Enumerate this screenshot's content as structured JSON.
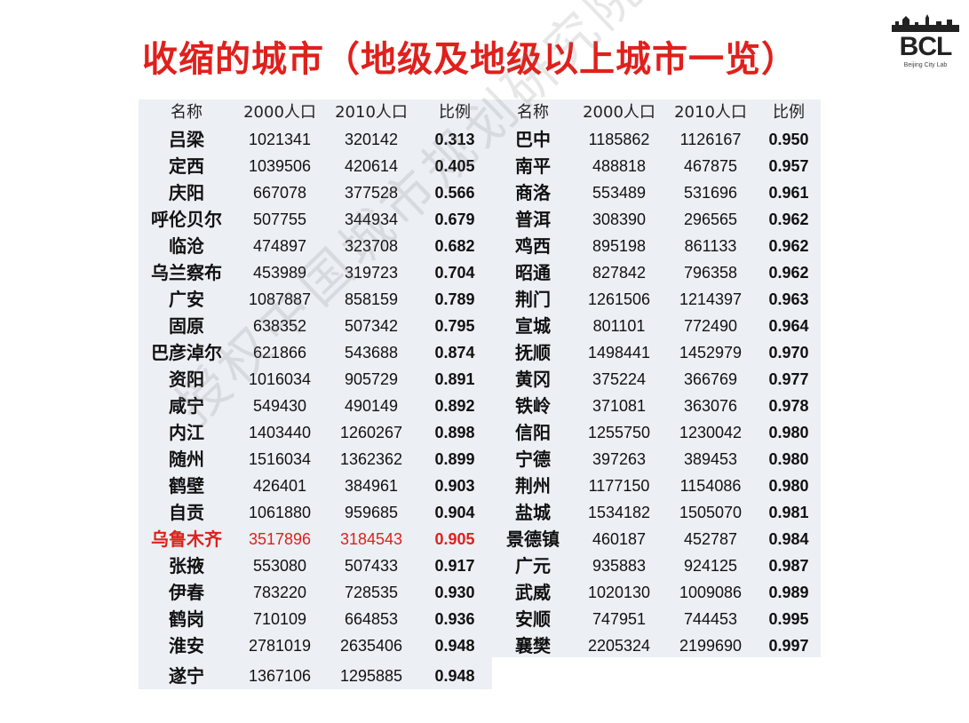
{
  "title": "收缩的城市（地级及地级以上城市一览）",
  "logo": {
    "text": "BCL",
    "subtitle": "Beijing City Lab"
  },
  "watermark": "授权中国城市规划研究院发布",
  "headers": {
    "name": "名称",
    "pop2000": "2000人口",
    "pop2010": "2010人口",
    "ratio": "比例"
  },
  "left": [
    {
      "name": "吕梁",
      "p2000": "1021341",
      "p2010": "320142",
      "ratio": "0.313"
    },
    {
      "name": "定西",
      "p2000": "1039506",
      "p2010": "420614",
      "ratio": "0.405"
    },
    {
      "name": "庆阳",
      "p2000": "667078",
      "p2010": "377528",
      "ratio": "0.566"
    },
    {
      "name": "呼伦贝尔",
      "p2000": "507755",
      "p2010": "344934",
      "ratio": "0.679"
    },
    {
      "name": "临沧",
      "p2000": "474897",
      "p2010": "323708",
      "ratio": "0.682"
    },
    {
      "name": "乌兰察布",
      "p2000": "453989",
      "p2010": "319723",
      "ratio": "0.704"
    },
    {
      "name": "广安",
      "p2000": "1087887",
      "p2010": "858159",
      "ratio": "0.789"
    },
    {
      "name": "固原",
      "p2000": "638352",
      "p2010": "507342",
      "ratio": "0.795"
    },
    {
      "name": "巴彦淖尔",
      "p2000": "621866",
      "p2010": "543688",
      "ratio": "0.874"
    },
    {
      "name": "资阳",
      "p2000": "1016034",
      "p2010": "905729",
      "ratio": "0.891"
    },
    {
      "name": "咸宁",
      "p2000": "549430",
      "p2010": "490149",
      "ratio": "0.892"
    },
    {
      "name": "内江",
      "p2000": "1403440",
      "p2010": "1260267",
      "ratio": "0.898"
    },
    {
      "name": "随州",
      "p2000": "1516034",
      "p2010": "1362362",
      "ratio": "0.899"
    },
    {
      "name": "鹤壁",
      "p2000": "426401",
      "p2010": "384961",
      "ratio": "0.903"
    },
    {
      "name": "自贡",
      "p2000": "1061880",
      "p2010": "959685",
      "ratio": "0.904"
    },
    {
      "name": "乌鲁木齐",
      "p2000": "3517896",
      "p2010": "3184543",
      "ratio": "0.905",
      "highlight": true
    },
    {
      "name": "张掖",
      "p2000": "553080",
      "p2010": "507433",
      "ratio": "0.917"
    },
    {
      "name": "伊春",
      "p2000": "783220",
      "p2010": "728535",
      "ratio": "0.930"
    },
    {
      "name": "鹤岗",
      "p2000": "710109",
      "p2010": "664853",
      "ratio": "0.936"
    },
    {
      "name": "淮安",
      "p2000": "2781019",
      "p2010": "2635406",
      "ratio": "0.948"
    },
    {
      "name": "遂宁",
      "p2000": "1367106",
      "p2010": "1295885",
      "ratio": "0.948"
    }
  ],
  "right": [
    {
      "name": "巴中",
      "p2000": "1185862",
      "p2010": "1126167",
      "ratio": "0.950"
    },
    {
      "name": "南平",
      "p2000": "488818",
      "p2010": "467875",
      "ratio": "0.957"
    },
    {
      "name": "商洛",
      "p2000": "553489",
      "p2010": "531696",
      "ratio": "0.961"
    },
    {
      "name": "普洱",
      "p2000": "308390",
      "p2010": "296565",
      "ratio": "0.962"
    },
    {
      "name": "鸡西",
      "p2000": "895198",
      "p2010": "861133",
      "ratio": "0.962"
    },
    {
      "name": "昭通",
      "p2000": "827842",
      "p2010": "796358",
      "ratio": "0.962"
    },
    {
      "name": "荆门",
      "p2000": "1261506",
      "p2010": "1214397",
      "ratio": "0.963"
    },
    {
      "name": "宣城",
      "p2000": "801101",
      "p2010": "772490",
      "ratio": "0.964"
    },
    {
      "name": "抚顺",
      "p2000": "1498441",
      "p2010": "1452979",
      "ratio": "0.970"
    },
    {
      "name": "黄冈",
      "p2000": "375224",
      "p2010": "366769",
      "ratio": "0.977"
    },
    {
      "name": "铁岭",
      "p2000": "371081",
      "p2010": "363076",
      "ratio": "0.978"
    },
    {
      "name": "信阳",
      "p2000": "1255750",
      "p2010": "1230042",
      "ratio": "0.980"
    },
    {
      "name": "宁德",
      "p2000": "397263",
      "p2010": "389453",
      "ratio": "0.980"
    },
    {
      "name": "荆州",
      "p2000": "1177150",
      "p2010": "1154086",
      "ratio": "0.980"
    },
    {
      "name": "盐城",
      "p2000": "1534182",
      "p2010": "1505070",
      "ratio": "0.981"
    },
    {
      "name": "景德镇",
      "p2000": "460187",
      "p2010": "452787",
      "ratio": "0.984"
    },
    {
      "name": "广元",
      "p2000": "935883",
      "p2010": "924125",
      "ratio": "0.987"
    },
    {
      "name": "武威",
      "p2000": "1020130",
      "p2010": "1009086",
      "ratio": "0.989"
    },
    {
      "name": "安顺",
      "p2000": "747951",
      "p2010": "744453",
      "ratio": "0.995"
    },
    {
      "name": "襄樊",
      "p2000": "2205324",
      "p2010": "2199690",
      "ratio": "0.997"
    }
  ]
}
